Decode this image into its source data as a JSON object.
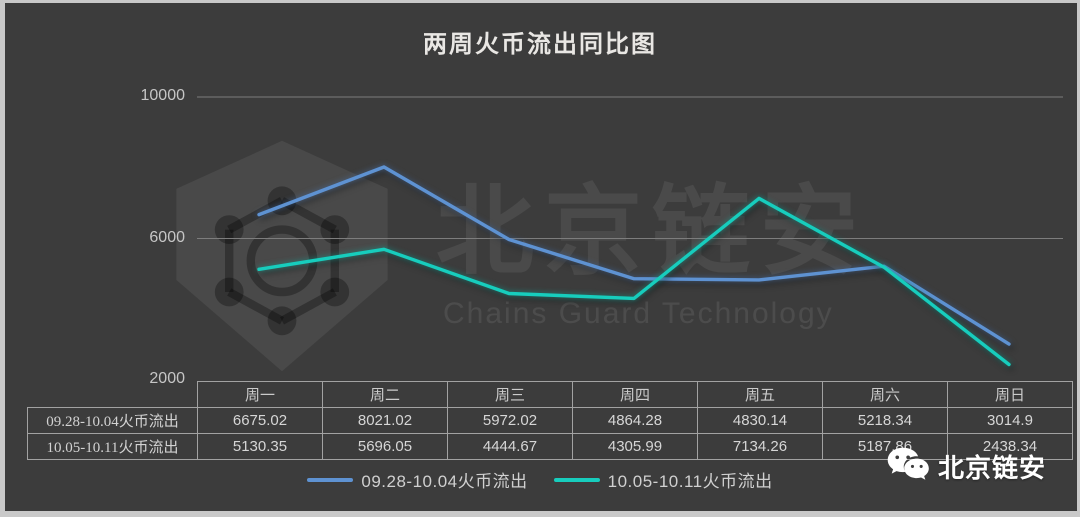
{
  "chart_data": {
    "type": "line",
    "title": "两周火币流出同比图",
    "categories": [
      "周一",
      "周二",
      "周三",
      "周四",
      "周五",
      "周六",
      "周日"
    ],
    "series": [
      {
        "name": "09.28-10.04火币流出",
        "color": "#5e92d2",
        "values": [
          6675.02,
          8021.02,
          5972.02,
          4864.28,
          4830.14,
          5218.34,
          3014.9
        ]
      },
      {
        "name": "10.05-10.11火币流出",
        "color": "#17cdbd",
        "values": [
          5130.35,
          5696.05,
          4444.67,
          4305.99,
          7134.26,
          5187.86,
          2438.34
        ]
      }
    ],
    "yticks": [
      10000,
      6000,
      2000
    ],
    "ylim": [
      2000,
      10000
    ],
    "grid": true,
    "legend_position": "bottom",
    "table_shown": true
  },
  "watermark": {
    "logo": "chains-guard-shield-logo",
    "cn": "北京链安",
    "en": "Chains Guard Technology"
  },
  "footer_badge": {
    "icon": "wechat-icon",
    "label": "北京链安"
  },
  "colors": {
    "background": "#3c3c3c",
    "frame": "#c9c9c9",
    "grid": "#7d7d7d",
    "series1": "#5e92d2",
    "series2": "#17cdbd",
    "table_border": "#a2a2a2",
    "text": "#d6d6d6"
  }
}
